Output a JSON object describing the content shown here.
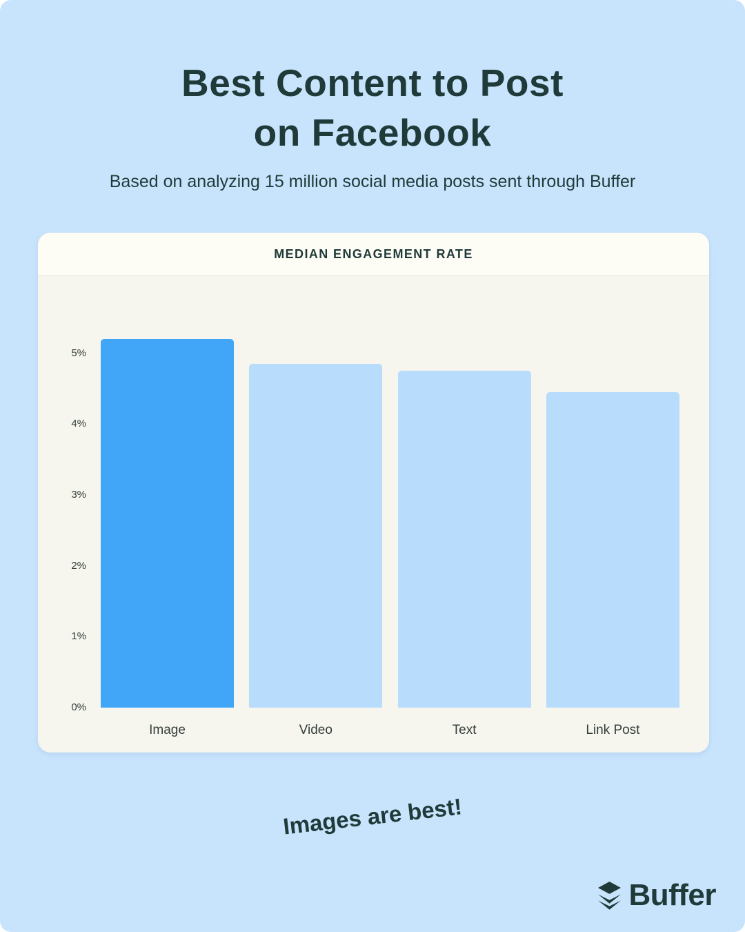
{
  "page": {
    "title_line1": "Best Content to Post",
    "title_line2": "on Facebook",
    "subtitle": "Based on analyzing 15 million social media posts sent through Buffer",
    "note": "Images are best!",
    "brand": "Buffer"
  },
  "colors": {
    "background": "#c8e4fd",
    "ink": "#1f3a38",
    "axis_ink": "#333e3b",
    "card_header_bg": "#fdfcf5",
    "card_body_bg": "#f6f5ee",
    "divider": "#e8e6dc",
    "bar_highlight": "#42a6f8",
    "bar_muted": "#b8dcfb"
  },
  "chart_data": {
    "type": "bar",
    "title": "MEDIAN ENGAGEMENT RATE",
    "categories": [
      "Image",
      "Video",
      "Text",
      "Link Post"
    ],
    "values": [
      5.2,
      4.85,
      4.75,
      4.45
    ],
    "unit": "%",
    "highlight_index": 0,
    "highlight_category": "Image",
    "y_ticks": [
      5,
      4,
      3,
      2,
      1,
      0
    ],
    "ylabel": "",
    "xlabel": "",
    "ylim": [
      0,
      5.5
    ],
    "grid": false,
    "legend": null
  }
}
